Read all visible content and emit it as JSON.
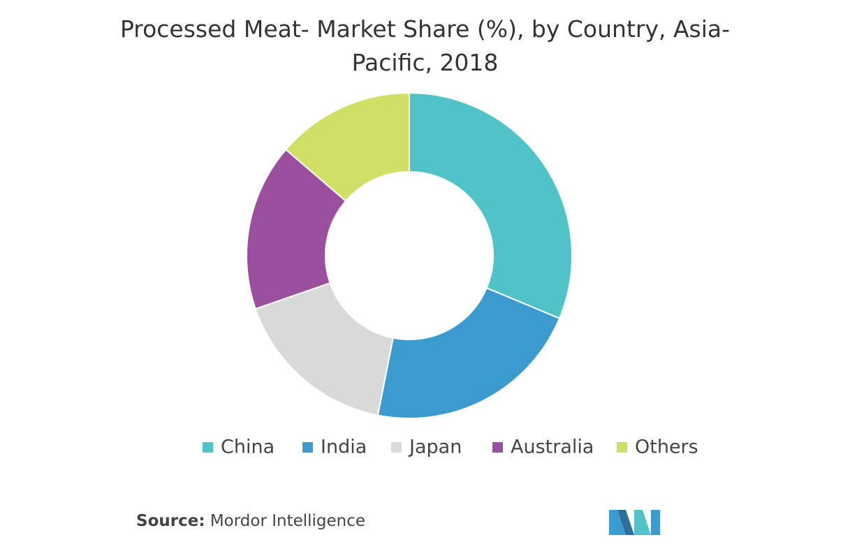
{
  "chart_data": {
    "type": "donut",
    "title": "Processed Meat- Market Share (%), by Country, Asia-Pacific, 2018",
    "categories": [
      "China",
      "India",
      "Japan",
      "Australia",
      "Others"
    ],
    "values": [
      31.3,
      21.8,
      16.6,
      16.6,
      13.7
    ],
    "colors": [
      "#4fc3c8",
      "#3b9bcf",
      "#d9d9d9",
      "#9b509f",
      "#d0df66"
    ],
    "source_label": "Source:",
    "source": "Mordor Intelligence"
  }
}
